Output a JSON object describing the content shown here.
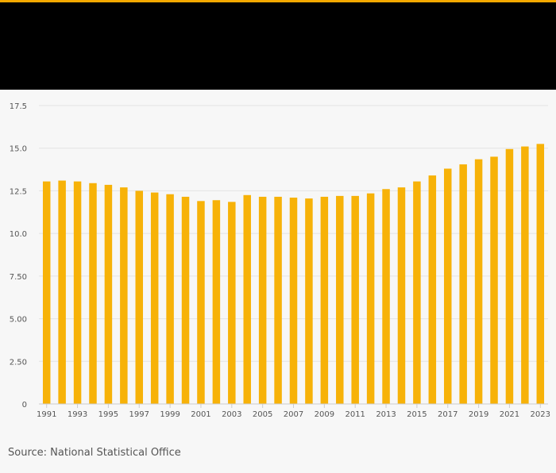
{
  "colors": {
    "accent": "#f5a800",
    "bar": "#f7b208",
    "header": "#000000",
    "grid": "#e3e3e3",
    "axis": "#cccccc",
    "tick_text": "#555555"
  },
  "source": "Source: National Statistical Office",
  "chart_data": {
    "type": "bar",
    "title": "",
    "xlabel": "",
    "ylabel": "",
    "ylim": [
      0,
      17.5
    ],
    "yticks": [
      {
        "value": 0,
        "label": "0"
      },
      {
        "value": 2.5,
        "label": "2.50"
      },
      {
        "value": 5,
        "label": "5.00"
      },
      {
        "value": 7.5,
        "label": "7.50"
      },
      {
        "value": 10,
        "label": "10.0"
      },
      {
        "value": 12.5,
        "label": "12.5"
      },
      {
        "value": 15,
        "label": "15.0"
      },
      {
        "value": 17.5,
        "label": "17.5"
      }
    ],
    "xtick_labels": [
      "1991",
      "1993",
      "1995",
      "1997",
      "1999",
      "2001",
      "2003",
      "2005",
      "2007",
      "2009",
      "2011",
      "2013",
      "2015",
      "2017",
      "2019",
      "2021",
      "2023"
    ],
    "categories": [
      "1991",
      "1992",
      "1993",
      "1994",
      "1995",
      "1996",
      "1997",
      "1998",
      "1999",
      "2000",
      "2001",
      "2002",
      "2003",
      "2004",
      "2005",
      "2006",
      "2007",
      "2008",
      "2009",
      "2010",
      "2011",
      "2012",
      "2013",
      "2014",
      "2015",
      "2016",
      "2017",
      "2018",
      "2019",
      "2020",
      "2021",
      "2022",
      "2023"
    ],
    "values": [
      13.05,
      13.1,
      13.05,
      12.95,
      12.85,
      12.7,
      12.5,
      12.4,
      12.3,
      12.15,
      11.9,
      11.95,
      11.85,
      12.25,
      12.15,
      12.15,
      12.1,
      12.05,
      12.15,
      12.2,
      12.2,
      12.35,
      12.6,
      12.7,
      13.05,
      13.4,
      13.8,
      14.05,
      14.35,
      14.5,
      14.95,
      15.1,
      15.25
    ]
  }
}
